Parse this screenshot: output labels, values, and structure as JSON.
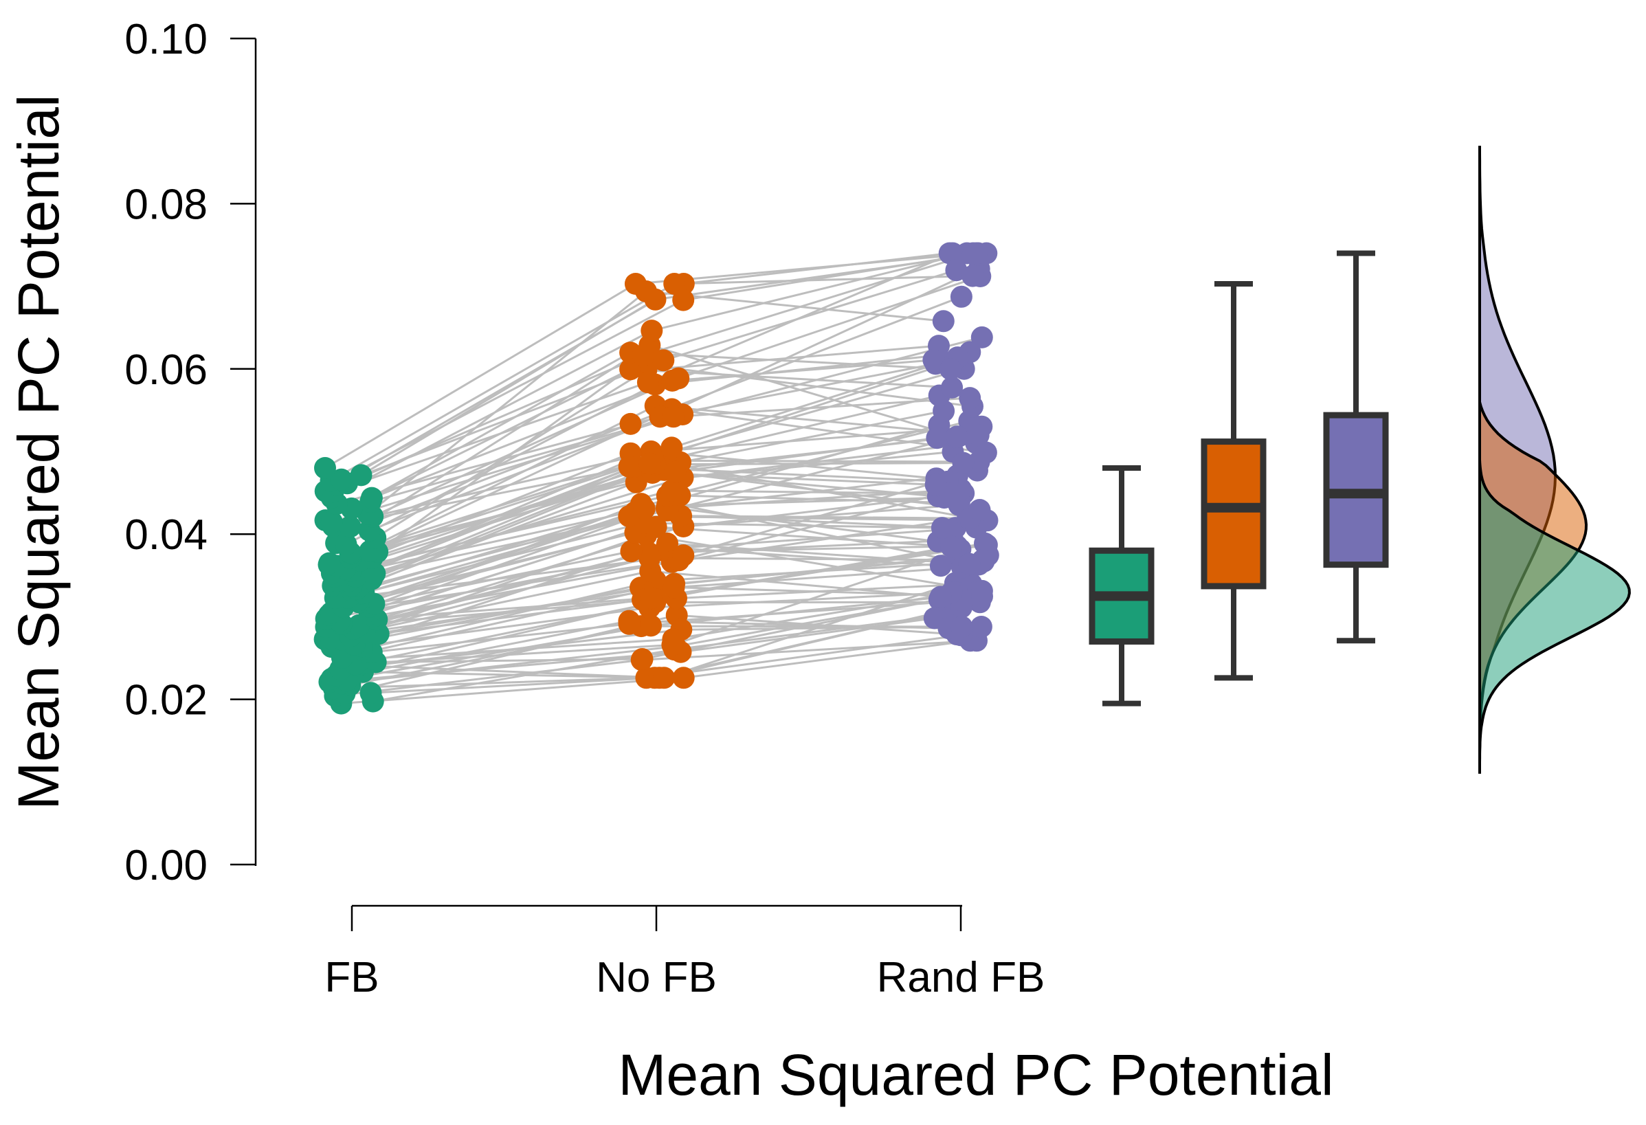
{
  "chart_data": {
    "type": "raincloud",
    "title": "",
    "xlabel": "Mean Squared PC Potential",
    "ylabel": "Mean Squared PC Potential",
    "ylim": [
      0,
      0.1
    ],
    "y_ticks": [
      "0.00",
      "0.02",
      "0.04",
      "0.06",
      "0.08",
      "0.10"
    ],
    "categories": [
      "FB",
      "No FB",
      "Rand FB"
    ],
    "colors": {
      "FB": "#1b9e77",
      "No FB": "#d95f02",
      "Rand FB": "#7570b3",
      "lines": "#bdbdbd",
      "box_edge": "#333333"
    },
    "n_subjects": 100,
    "boxplots": [
      {
        "name": "FB",
        "min": 0.0195,
        "q1": 0.027,
        "median": 0.0325,
        "q3": 0.038,
        "max": 0.048
      },
      {
        "name": "No FB",
        "min": 0.0226,
        "q1": 0.0337,
        "median": 0.0432,
        "q3": 0.0512,
        "max": 0.0703
      },
      {
        "name": "Rand FB",
        "min": 0.0271,
        "q1": 0.0363,
        "median": 0.0449,
        "q3": 0.0544,
        "max": 0.074
      }
    ],
    "densities": [
      {
        "name": "FB",
        "peak_at": 0.033,
        "range": [
          0.011,
          0.049
        ]
      },
      {
        "name": "No FB",
        "peak_at": 0.041,
        "range": [
          0.012,
          0.056
        ]
      },
      {
        "name": "Rand FB",
        "peak_at": 0.047,
        "range": [
          0.014,
          0.087
        ]
      }
    ]
  }
}
